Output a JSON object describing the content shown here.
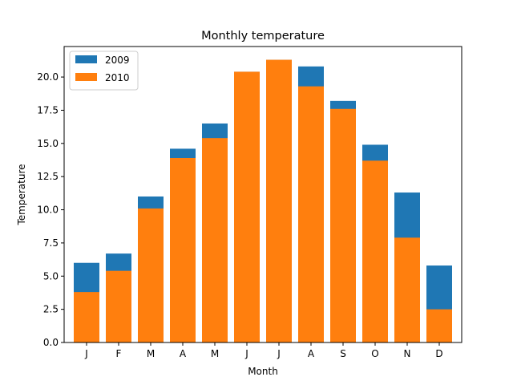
{
  "chart_data": {
    "type": "bar",
    "title": "Monthly temperature",
    "xlabel": "Month",
    "ylabel": "Temperature",
    "categories": [
      "J",
      "F",
      "M",
      "A",
      "M",
      "J",
      "J",
      "A",
      "S",
      "O",
      "N",
      "D"
    ],
    "series": [
      {
        "name": "2009",
        "color": "#1f77b4",
        "values": [
          6.0,
          6.7,
          11.0,
          14.6,
          16.5,
          20.4,
          21.3,
          20.8,
          18.2,
          14.9,
          11.3,
          5.8
        ]
      },
      {
        "name": "2010",
        "color": "#ff7f0e",
        "values": [
          3.8,
          5.4,
          10.1,
          13.9,
          15.4,
          20.4,
          21.3,
          19.3,
          17.6,
          13.7,
          7.9,
          2.5
        ]
      }
    ],
    "ylim": [
      0,
      22.3
    ],
    "yticks": [
      "0.0",
      "2.5",
      "5.0",
      "7.5",
      "10.0",
      "12.5",
      "15.0",
      "17.5",
      "20.0"
    ],
    "grid": false,
    "legend": "top-left"
  }
}
